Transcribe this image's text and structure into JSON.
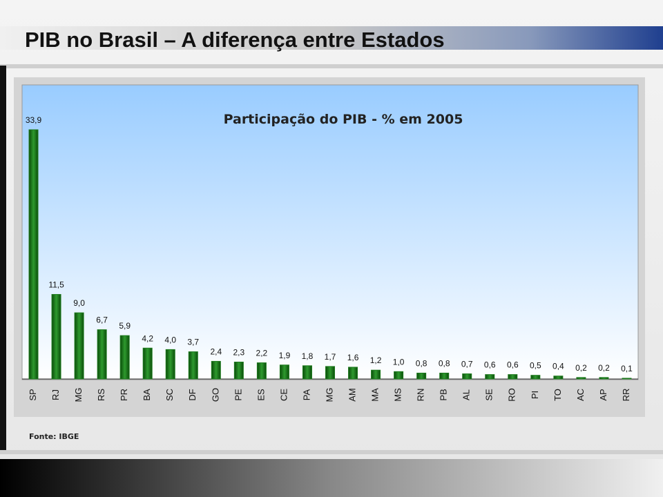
{
  "slide_title": "PIB no Brasil – A diferença entre Estados",
  "source": "Fonte: IBGE",
  "chart_data": {
    "type": "bar",
    "title": "Participação do PIB - % em 2005",
    "categories": [
      "SP",
      "RJ",
      "MG",
      "RS",
      "PR",
      "BA",
      "SC",
      "DF",
      "GO",
      "PE",
      "ES",
      "CE",
      "PA",
      "MG",
      "AM",
      "MA",
      "MS",
      "RN",
      "PB",
      "AL",
      "SE",
      "RO",
      "PI",
      "TO",
      "AC",
      "AP",
      "RR"
    ],
    "values": [
      33.9,
      11.5,
      9.0,
      6.7,
      5.9,
      4.2,
      4.0,
      3.7,
      2.4,
      2.3,
      2.2,
      1.9,
      1.8,
      1.7,
      1.6,
      1.2,
      1.0,
      0.8,
      0.8,
      0.7,
      0.6,
      0.6,
      0.5,
      0.4,
      0.2,
      0.2,
      0.1
    ],
    "value_labels": [
      "33,9",
      "11,5",
      "9,0",
      "6,7",
      "5,9",
      "4,2",
      "4,0",
      "3,7",
      "2,4",
      "2,3",
      "2,2",
      "1,9",
      "1,8",
      "1,7",
      "1,6",
      "1,2",
      "1,0",
      "0,8",
      "0,8",
      "0,7",
      "0,6",
      "0,6",
      "0,5",
      "0,4",
      "0,2",
      "0,2",
      "0,1"
    ],
    "color": "#1f7a1f",
    "ylim": [
      0,
      40
    ]
  }
}
